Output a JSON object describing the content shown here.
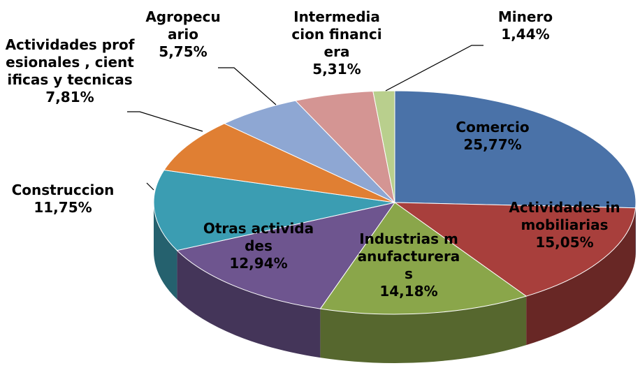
{
  "chart_data": {
    "type": "pie3d",
    "categories": [
      "Comercio",
      "Actividades inmobiliarias",
      "Industrias manufactureras",
      "Otras actividades",
      "Construccion",
      "Actividades profesionales , cientificas y tecnicas",
      "Agropecuario",
      "Intermediacion financiera",
      "Minero"
    ],
    "values": [
      25.77,
      15.05,
      14.18,
      12.94,
      11.75,
      7.81,
      5.75,
      5.31,
      1.44
    ],
    "value_labels": [
      "25,77%",
      "15,05%",
      "14,18%",
      "12,94%",
      "11,75%",
      "7,81%",
      "5,75%",
      "5,31%",
      "1,44%"
    ],
    "colors": [
      "#4a72a8",
      "#a83f3c",
      "#8aa64a",
      "#6e558f",
      "#3b9db2",
      "#e07f33",
      "#8ea7d3",
      "#d49593",
      "#b9cf8d"
    ]
  }
}
